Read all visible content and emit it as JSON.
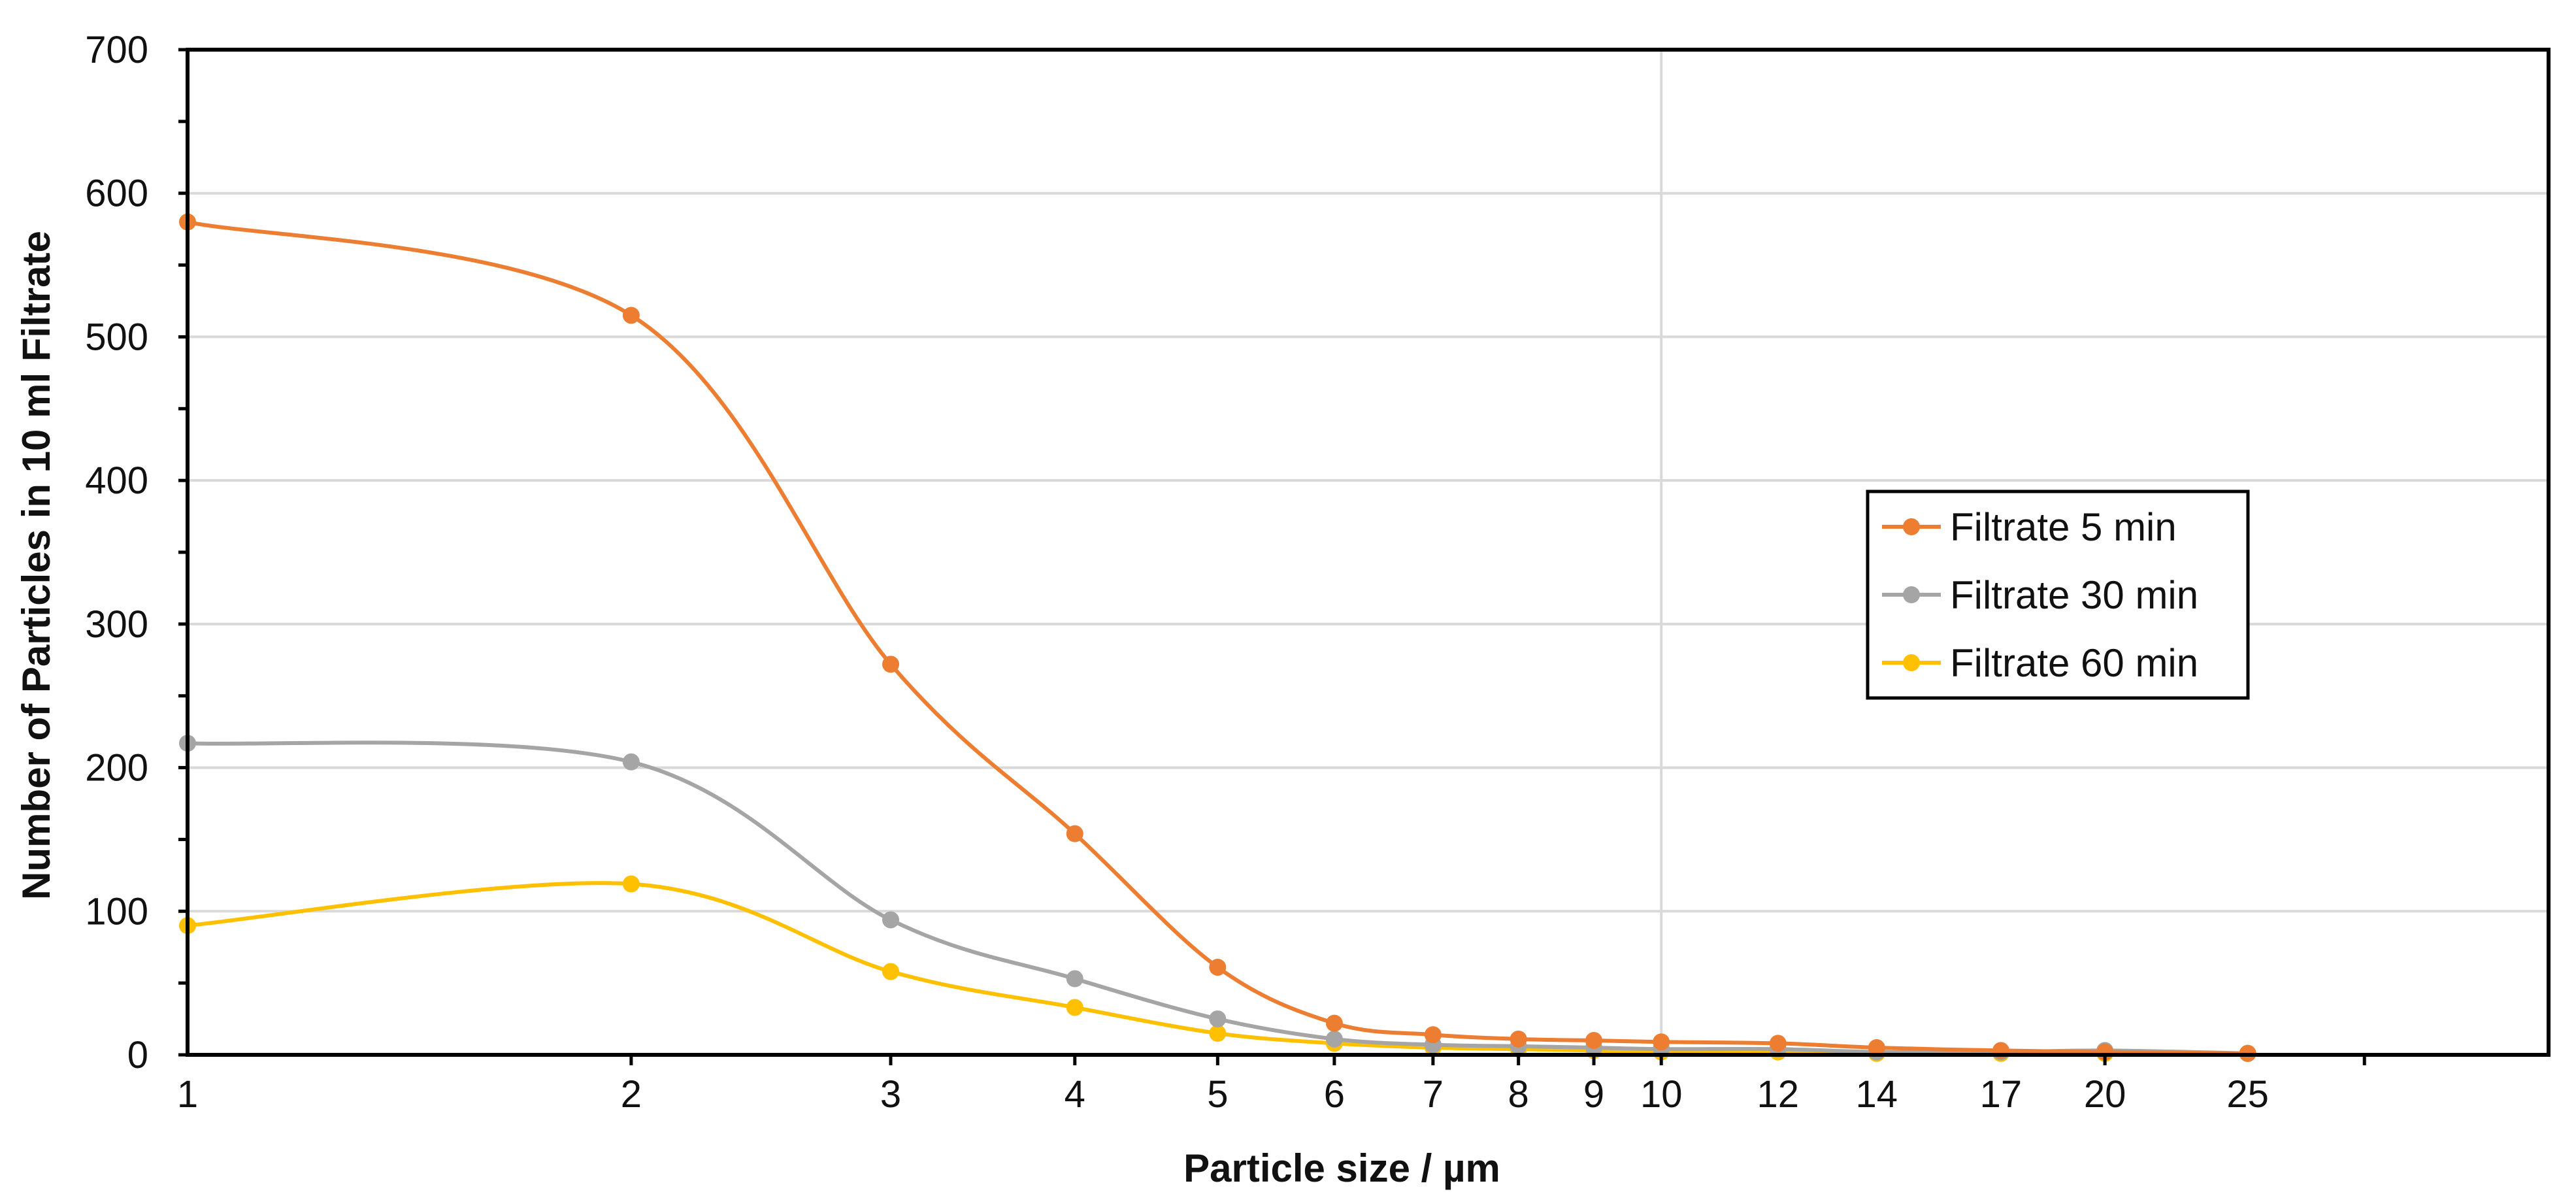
{
  "chart_data": {
    "type": "line",
    "title": "",
    "xlabel": "Particle  size / µm",
    "ylabel": "Number of Particles in 10 ml Filtrate",
    "xscale": "log",
    "xlim": [
      1,
      40
    ],
    "ylim": [
      0,
      700
    ],
    "ytick_step": 100,
    "yticks": [
      "0",
      "100",
      "200",
      "300",
      "400",
      "500",
      "600",
      "700"
    ],
    "x": [
      1,
      2,
      3,
      4,
      5,
      6,
      7,
      8,
      9,
      10,
      12,
      14,
      17,
      20,
      25
    ],
    "xtick_labels": [
      "1",
      "2",
      "3",
      "4",
      "5",
      "6",
      "7",
      "8",
      "9",
      "10",
      "12",
      "14",
      "17",
      "20",
      "25"
    ],
    "grid": true,
    "legend_position": "right",
    "series": [
      {
        "name": "Filtrate 5 min",
        "color": "#ED7D31",
        "values": [
          580,
          515,
          272,
          154,
          61,
          22,
          14,
          11,
          10,
          9,
          8,
          5,
          3,
          2,
          1
        ]
      },
      {
        "name": "Filtrate 30 min",
        "color": "#A5A5A5",
        "values": [
          217,
          204,
          94,
          53,
          25,
          11,
          7,
          6,
          5,
          4,
          4,
          2,
          2,
          3,
          1
        ]
      },
      {
        "name": "Filtrate 60 min",
        "color": "#FFC000",
        "values": [
          90,
          119,
          58,
          33,
          15,
          8,
          5,
          4,
          3,
          2,
          2,
          1,
          1,
          1,
          1
        ]
      }
    ]
  }
}
